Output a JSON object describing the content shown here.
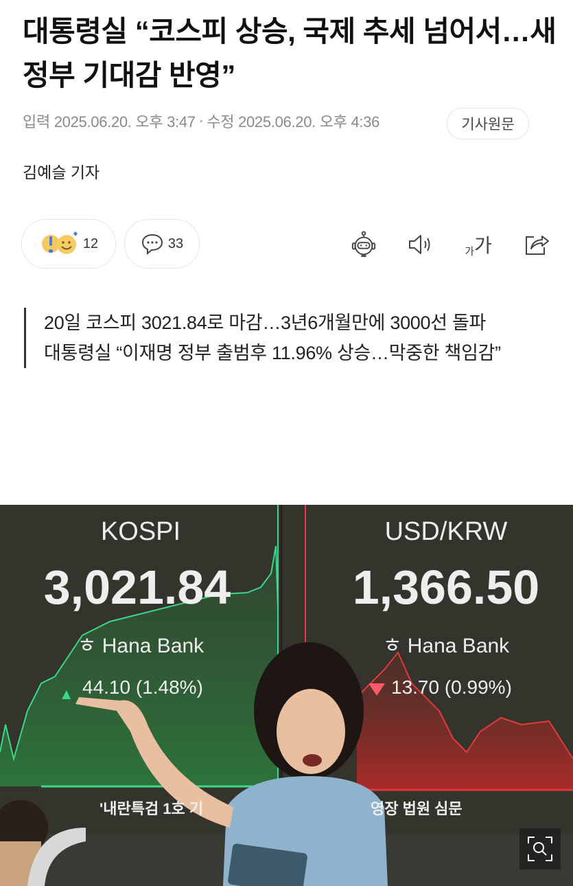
{
  "article": {
    "title": "대통령실 “코스피 상승, 국제 추세 넘어서…새 정부 기대감 반영”",
    "input_label": "입력",
    "input_time": "2025.06.20. 오후 3:47",
    "edit_label": "수정",
    "edit_time": "2025.06.20. 오후 4:36",
    "original_button": "기사원문",
    "byline": "김예슬 기자",
    "summary": [
      "20일 코스피 3021.84로 마감…3년6개월만에 3000선 돌파",
      "대통령실 “이재명 정부 출범후 11.96% 상승…막중한 책임감”"
    ]
  },
  "actions": {
    "reaction_count": "12",
    "comment_count": "33",
    "font_size_label_small": "가",
    "font_size_label_large": "가",
    "icons": [
      "reaction-emoji-icon",
      "comment-icon",
      "ai-summary-robot-icon",
      "speaker-icon",
      "font-size-icon",
      "share-icon"
    ]
  },
  "photo": {
    "kospi_label": "KOSPI",
    "kospi_value": "3,021.84",
    "kospi_change": "44.10 (1.48%)",
    "usd_label": "USD/KRW",
    "usd_value": "1,366.50",
    "usd_change": "13.70 (0.99%)",
    "bank": "Hana Bank",
    "ticker_left": "'내란특검 1호 기",
    "ticker_right": "영장 법원 심문",
    "colors": {
      "up": "#3ad88a",
      "down": "#e23a3a"
    }
  }
}
